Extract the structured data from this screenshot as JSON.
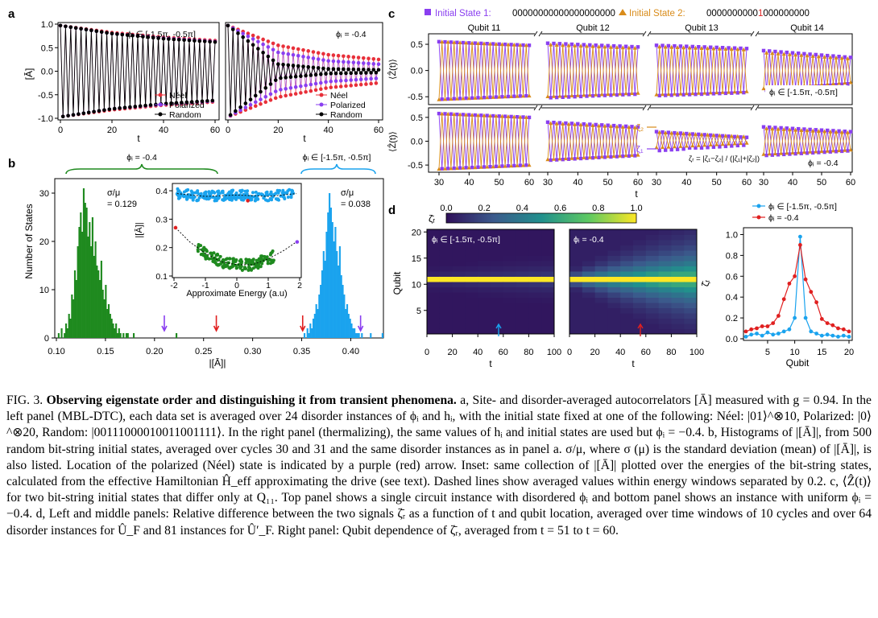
{
  "panel_letters": {
    "a": "a",
    "b": "b",
    "c": "c",
    "d": "d"
  },
  "panel_a": {
    "left_annotation": "ϕᵢ ∈ [-1.5π, -0.5π]",
    "right_annotation": "ϕᵢ = -0.4",
    "ylabel": "[Ā]",
    "xlabel": "t",
    "legend": [
      "Néel",
      "Polarized",
      "Random"
    ]
  },
  "panel_b": {
    "left_brace_label": "ϕᵢ = -0.4",
    "right_brace_label": "ϕᵢ ∈ [-1.5π, -0.5π]",
    "left_stat": "σ/μ\n= 0.129",
    "right_stat": "σ/μ\n= 0.038",
    "ylabel": "Number of States",
    "xlabel": "|[Ā]|",
    "inset_ylabel": "|[Ā]|",
    "inset_xlabel": "Approximate Energy (a.u)"
  },
  "panel_c": {
    "state1_label": "Initial State 1:",
    "state1_bits": "00000000000000000000",
    "state2_label": "Initial State 2:",
    "state2_bits_pre": "0000000000",
    "state2_bits_flip": "1",
    "state2_bits_post": "000000000",
    "qubits": [
      "Qubit 11",
      "Qubit 12",
      "Qubit 13",
      "Qubit 14"
    ],
    "top_tag": "ϕᵢ ∈ [-1.5π, -0.5π]",
    "bottom_tag": "ϕᵢ = -0.4",
    "ylabel": "⟨Ẑ(t)⟩",
    "xlabel": "t",
    "zeta2": "ζ₂",
    "zeta1": "ζ₁",
    "zeta_r": "ζᵣ = |ζ₁−ζ₂| / (|ζ₁|+|ζ₂|)"
  },
  "panel_d": {
    "colorbar_label": "ζ̄ᵣ",
    "left_tag": "ϕᵢ ∈ [-1.5π, -0.5π]",
    "mid_tag": "ϕᵢ = -0.4",
    "ylabel": "Qubit",
    "xlabel": "t",
    "right_legend": [
      "ϕᵢ ∈ [-1.5π, -0.5π]",
      "ϕᵢ = -0.4"
    ],
    "right_ylabel": "ζ̄ᵣ",
    "right_xlabel": "Qubit"
  },
  "colors": {
    "neel": "#e8303a",
    "polarized": "#8a3ff0",
    "random": "#000000",
    "green": "#1f8a1f",
    "blue": "#1aa3ee",
    "orange": "#d98c1a",
    "purple": "#8a3ff0",
    "red": "#e02020"
  },
  "chart_data": [
    {
      "type": "line",
      "panel": "a-left",
      "x_range": [
        0,
        60
      ],
      "ylim": [
        -1.0,
        1.0
      ],
      "xticks": [
        0,
        20,
        40,
        60
      ],
      "yticks": [
        -1.0,
        -0.5,
        0.0,
        0.5,
        1.0
      ],
      "series": [
        {
          "name": "Néel",
          "envelope": {
            "t": [
              0,
              20,
              40,
              60
            ],
            "amp": [
              0.97,
              0.82,
              0.72,
              0.65
            ]
          }
        },
        {
          "name": "Polarized",
          "envelope": {
            "t": [
              0,
              20,
              40,
              60
            ],
            "amp": [
              0.97,
              0.8,
              0.7,
              0.63
            ]
          }
        },
        {
          "name": "Random",
          "envelope": {
            "t": [
              0,
              20,
              40,
              60
            ],
            "amp": [
              0.97,
              0.8,
              0.69,
              0.62
            ]
          }
        }
      ]
    },
    {
      "type": "line",
      "panel": "a-right",
      "x_range": [
        0,
        60
      ],
      "ylim": [
        -1.0,
        1.0
      ],
      "xticks": [
        0,
        20,
        40,
        60
      ],
      "series": [
        {
          "name": "Néel",
          "envelope": {
            "t": [
              0,
              20,
              40,
              60
            ],
            "amp": [
              0.97,
              0.55,
              0.35,
              0.25
            ]
          }
        },
        {
          "name": "Polarized",
          "envelope": {
            "t": [
              0,
              20,
              40,
              60
            ],
            "amp": [
              0.97,
              0.4,
              0.22,
              0.15
            ]
          }
        },
        {
          "name": "Random",
          "envelope": {
            "t": [
              0,
              20,
              40,
              60
            ],
            "amp": [
              0.97,
              0.15,
              0.05,
              0.03
            ]
          }
        }
      ]
    },
    {
      "type": "bar",
      "panel": "b",
      "xlim": [
        0.1,
        0.43
      ],
      "ylim": [
        0,
        33
      ],
      "xticks": [
        0.1,
        0.15,
        0.2,
        0.25,
        0.3,
        0.35,
        0.4,
        0.45
      ],
      "yticks": [
        0,
        10,
        20,
        30
      ],
      "series": [
        {
          "name": "ϕᵢ = -0.4",
          "x_start": 0.1,
          "bin_width": 0.0015,
          "values": [
            0,
            1,
            0,
            2,
            0,
            1,
            3,
            2,
            5,
            4,
            9,
            8,
            14,
            12,
            19,
            23,
            26,
            22,
            31,
            28,
            27,
            21,
            24,
            19,
            25,
            17,
            20,
            15,
            14,
            12,
            16,
            10,
            8,
            11,
            6,
            7,
            5,
            4,
            3,
            2,
            3,
            1,
            2,
            1,
            0,
            1,
            0,
            1,
            1,
            0,
            0,
            0,
            1,
            0,
            0,
            0,
            0,
            0,
            0,
            0,
            0,
            0,
            0,
            0,
            0,
            0,
            0,
            0,
            0,
            0,
            0,
            0,
            0,
            0,
            0,
            0,
            0,
            0,
            0,
            0,
            0,
            1
          ]
        },
        {
          "name": "ϕᵢ ∈ [-1.5π, -0.5π]",
          "x_start": 0.352,
          "bin_width": 0.0015,
          "values": [
            1,
            0,
            2,
            1,
            3,
            2,
            4,
            5,
            7,
            6,
            9,
            11,
            14,
            18,
            16,
            22,
            26,
            30,
            27,
            24,
            20,
            23,
            18,
            15,
            19,
            13,
            11,
            9,
            6,
            7,
            5,
            4,
            3,
            2,
            2,
            1,
            1,
            1,
            0,
            1,
            0,
            0,
            0,
            0,
            0,
            1,
            0,
            0,
            0,
            0,
            0,
            0,
            0,
            1
          ]
        }
      ],
      "annotations": [
        {
          "label": "polarized arrow (green)",
          "x": 0.21
        },
        {
          "label": "Néel arrow (green)",
          "x": 0.263
        },
        {
          "label": "Néel arrow (blue)",
          "x": 0.351
        },
        {
          "label": "polarized arrow (blue)",
          "x": 0.41
        }
      ]
    },
    {
      "type": "scatter",
      "panel": "b-inset",
      "xlim": [
        -2,
        2
      ],
      "ylim": [
        0.1,
        0.42
      ],
      "xticks": [
        -2,
        -1,
        0,
        1,
        2
      ],
      "yticks": [
        0.1,
        0.2,
        0.3,
        0.4
      ],
      "trend_green": {
        "x": [
          -1.95,
          -1.5,
          -1.0,
          -0.5,
          0.0,
          0.5,
          1.0,
          1.5,
          1.9
        ],
        "y": [
          0.27,
          0.22,
          0.18,
          0.15,
          0.14,
          0.14,
          0.16,
          0.19,
          0.22
        ]
      },
      "trend_blue": {
        "x": [
          -1.9,
          -1.0,
          0.0,
          1.0,
          1.9
        ],
        "y": [
          0.39,
          0.38,
          0.385,
          0.38,
          0.39
        ]
      }
    },
    {
      "type": "line",
      "panel": "c",
      "segments_t": [
        [
          29,
          61
        ],
        [
          59,
          61
        ],
        [
          59,
          61
        ],
        [
          59,
          61
        ]
      ],
      "xticks": [
        30,
        40,
        50,
        60
      ],
      "ylim": [
        -0.65,
        0.7
      ],
      "yticks": [
        -0.5,
        0.0,
        0.5
      ],
      "top_amplitudes": {
        "Qubit 11": [
          0.55,
          0.48
        ],
        "Qubit 12": [
          0.52,
          0.45
        ],
        "Qubit 13": [
          0.48,
          0.42
        ],
        "Qubit 14": [
          0.38,
          0.25
        ]
      },
      "bottom_amplitudes": {
        "Qubit 11": [
          0.58,
          0.5
        ],
        "Qubit 12": [
          0.4,
          0.3
        ],
        "Qubit 13": [
          0.2,
          0.08
        ],
        "Qubit 14": [
          0.3,
          0.2
        ]
      }
    },
    {
      "type": "heatmap",
      "panel": "d-heatmaps",
      "x_range": [
        0,
        100
      ],
      "y_range": [
        1,
        20
      ],
      "xticks": [
        0,
        20,
        40,
        60,
        80,
        100
      ],
      "yticks": [
        5,
        10,
        15,
        20
      ],
      "colorbar": {
        "range": [
          0.0,
          1.0
        ],
        "ticks": [
          0.0,
          0.2,
          0.4,
          0.6,
          0.8,
          1.0
        ]
      }
    },
    {
      "type": "line",
      "panel": "d-right",
      "x": [
        1,
        2,
        3,
        4,
        5,
        6,
        7,
        8,
        9,
        10,
        11,
        12,
        13,
        14,
        15,
        16,
        17,
        18,
        19,
        20
      ],
      "xticks": [
        5,
        10,
        15,
        20
      ],
      "yticks": [
        0.0,
        0.2,
        0.4,
        0.6,
        0.8,
        1.0
      ],
      "ylim": [
        0,
        1.05
      ],
      "series": [
        {
          "name": "ϕᵢ ∈ [-1.5π, -0.5π]",
          "values": [
            0.02,
            0.04,
            0.05,
            0.03,
            0.06,
            0.04,
            0.05,
            0.07,
            0.09,
            0.2,
            0.98,
            0.2,
            0.07,
            0.05,
            0.03,
            0.04,
            0.03,
            0.02,
            0.03,
            0.02
          ]
        },
        {
          "name": "ϕᵢ = -0.4",
          "values": [
            0.07,
            0.09,
            0.1,
            0.12,
            0.12,
            0.15,
            0.22,
            0.38,
            0.53,
            0.6,
            0.9,
            0.57,
            0.45,
            0.35,
            0.19,
            0.15,
            0.13,
            0.1,
            0.09,
            0.07
          ]
        }
      ]
    }
  ],
  "caption": {
    "fig_label": "FIG. 3.",
    "title": "Observing eigenstate order and distinguishing it from transient phenomena.",
    "body": "a, Site- and disorder-averaged autocorrelators [Ā] measured with g = 0.94. In the left panel (MBL-DTC), each data set is averaged over 24 disorder instances of ϕᵢ and hᵢ, with the initial state fixed at one of the following: Néel: |01⟩^⊗10, Polarized: |0⟩^⊗20, Random: |00111000010011001111⟩. In the right panel (thermalizing), the same values of hᵢ and initial states are used but ϕᵢ = −0.4. b, Histograms of |[Ā]|, from 500 random bit-string initial states, averaged over cycles 30 and 31 and the same disorder instances as in panel a. σ/μ, where σ (μ) is the standard deviation (mean) of |[Ā]|, is also listed. Location of the polarized (Néel) state is indicated by a purple (red) arrow. Inset: same collection of |[Ā]| plotted over the energies of the bit-string states, calculated from the effective Hamiltonian Ĥ_eff approximating the drive (see text). Dashed lines show averaged values within energy windows separated by 0.2. c, ⟨Ẑ(t)⟩ for two bit-string initial states that differ only at Q₁₁. Top panel shows a single circuit instance with disordered ϕᵢ and bottom panel shows an instance with uniform ϕᵢ = −0.4. d, Left and middle panels: Relative difference between the two signals ζ̄ᵣ as a function of t and qubit location, averaged over time windows of 10 cycles and over 64 disorder instances for Û_F and 81 instances for Û′_F. Right panel: Qubit dependence of ζ̄ᵣ, averaged from t = 51 to t = 60."
  }
}
